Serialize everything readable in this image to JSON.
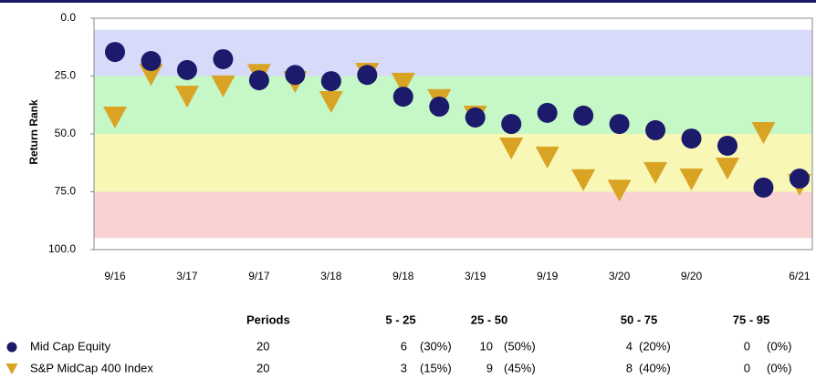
{
  "chart_data": {
    "type": "scatter",
    "y_label": "Return Rank",
    "ylim": [
      0,
      100
    ],
    "y_inverted": true,
    "yticks": [
      {
        "value": 0,
        "label": "0.0"
      },
      {
        "value": 25,
        "label": "25.0"
      },
      {
        "value": 50,
        "label": "50.0"
      },
      {
        "value": 75,
        "label": "75.0"
      },
      {
        "value": 100,
        "label": "100.0"
      }
    ],
    "bands": [
      {
        "from": 5,
        "to": 25,
        "color": "#d8dafa"
      },
      {
        "from": 25,
        "to": 50,
        "color": "#c6f7c6"
      },
      {
        "from": 50,
        "to": 75,
        "color": "#f9f7b5"
      },
      {
        "from": 75,
        "to": 95,
        "color": "#f9d3d3"
      }
    ],
    "categories": [
      "9/16",
      null,
      "3/17",
      null,
      "9/17",
      null,
      "3/18",
      null,
      "9/18",
      null,
      "3/19",
      null,
      "9/19",
      null,
      "3/20",
      null,
      "9/20",
      null,
      null,
      "6/21"
    ],
    "series": [
      {
        "name": "Mid Cap Equity",
        "color": "#1b1a6b",
        "marker": "circle",
        "values": [
          14.6,
          18.5,
          22.4,
          17.7,
          26.8,
          24.5,
          27.2,
          24.5,
          33.9,
          38.2,
          42.9,
          45.7,
          40.9,
          42.1,
          45.7,
          48.4,
          52,
          55.1,
          73.2,
          69.3
        ]
      },
      {
        "name": "S&P MidCap 400 Index",
        "color": "#d9a324",
        "marker": "triangle-down",
        "values": [
          42.9,
          24.5,
          33.9,
          29.5,
          24.5,
          27.6,
          36.2,
          24,
          28.3,
          35.4,
          42.5,
          56.3,
          60.2,
          70,
          74.5,
          66.9,
          69.7,
          65,
          49.6,
          72
        ]
      }
    ]
  },
  "table": {
    "header": [
      "Periods",
      "5 - 25",
      "25 - 50",
      "50 - 75",
      "75 - 95"
    ],
    "rows": [
      [
        "20",
        "6",
        "(30%)",
        "10",
        "(50%)",
        "4",
        "(20%)",
        "0",
        "(0%)"
      ],
      [
        "20",
        "3",
        "(15%)",
        "9",
        "(45%)",
        "8",
        "(40%)",
        "0",
        "(0%)"
      ]
    ]
  }
}
